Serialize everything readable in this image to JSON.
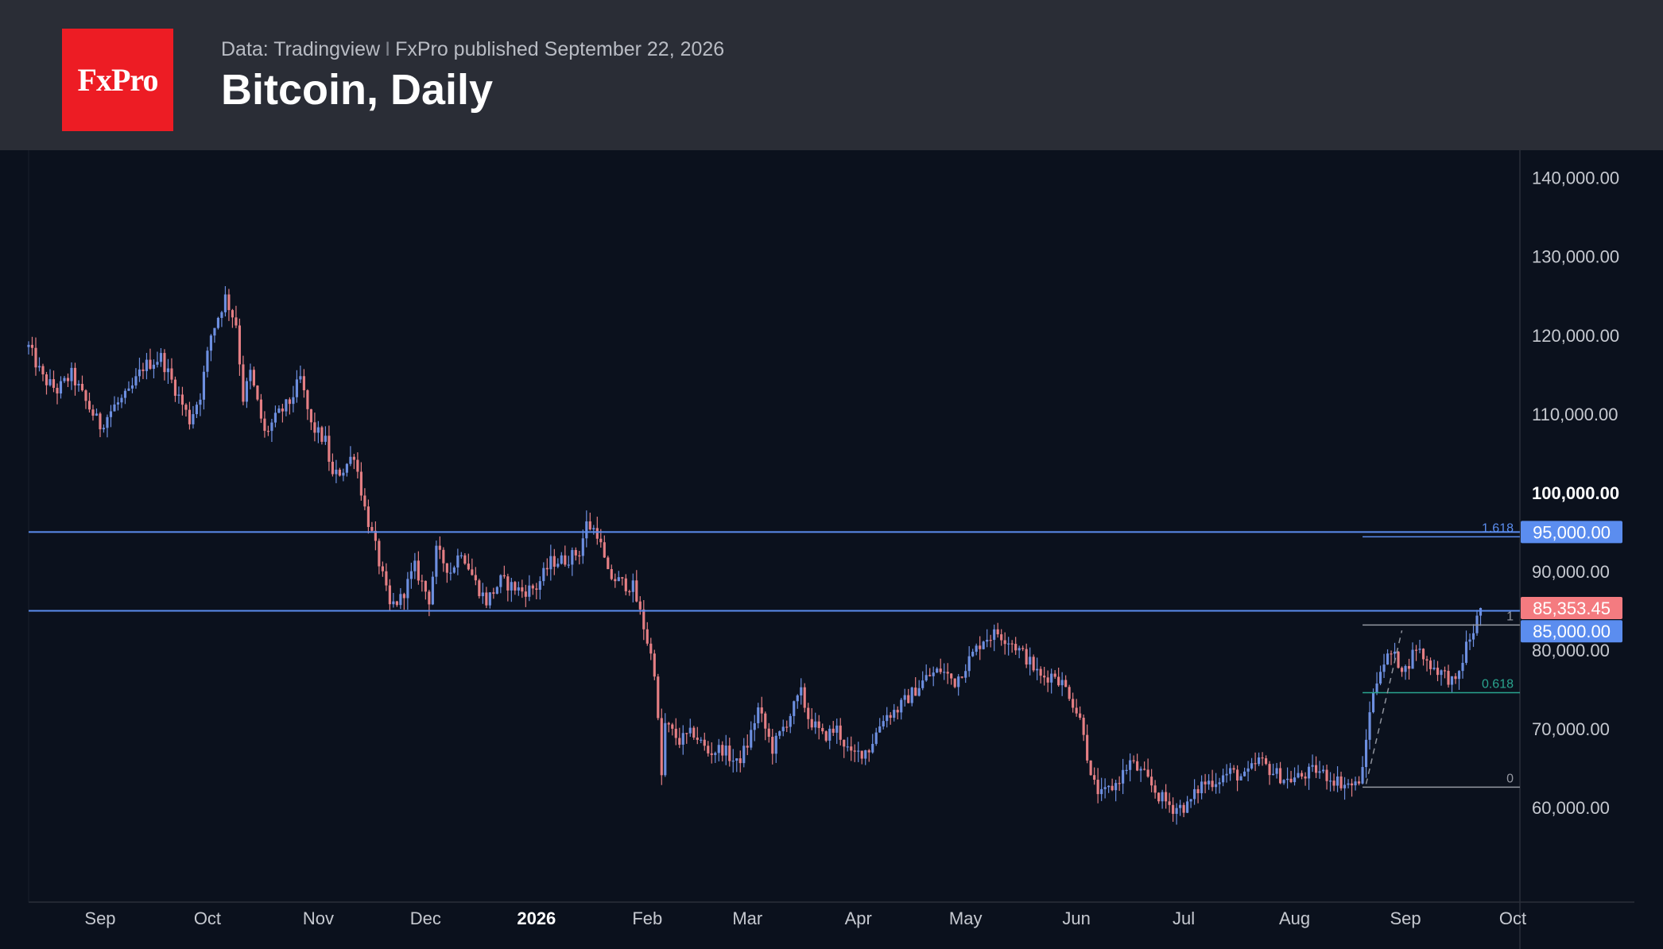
{
  "header": {
    "logo_text": "FxPro",
    "source": "Data: Tradingview",
    "separator": "I",
    "published": "FxPro published September 22, 2026",
    "title": "Bitcoin, Daily"
  },
  "colors": {
    "header_bg": "#2a2d36",
    "chart_bg": "#0b111d",
    "logo_bg": "#ed1c24",
    "up_candle": "#6d8fe0",
    "down_candle": "#e57f84",
    "level_line": "#5b8def",
    "fib_line": "#9598a1",
    "fib_618": "#2aa58f",
    "price_tag": "#f47b80"
  },
  "chart_data": {
    "type": "candlestick",
    "title": "Bitcoin, Daily",
    "y_axis": {
      "ticks": [
        "140,000.00",
        "130,000.00",
        "120,000.00",
        "110,000.00",
        "100,000.00",
        "90,000.00",
        "80,000.00",
        "70,000.00",
        "60,000.00"
      ],
      "tick_values": [
        140000,
        130000,
        120000,
        110000,
        100000,
        90000,
        80000,
        70000,
        60000
      ],
      "bold_tick": "100,000.00",
      "range": [
        48000,
        143500
      ],
      "position": "right"
    },
    "x_axis": {
      "labels": [
        {
          "text": "Sep",
          "date": "2025-09-01"
        },
        {
          "text": "Oct",
          "date": "2025-10-01"
        },
        {
          "text": "Nov",
          "date": "2025-11-01"
        },
        {
          "text": "Dec",
          "date": "2025-12-01"
        },
        {
          "text": "2026",
          "date": "2026-01-01",
          "bold": true
        },
        {
          "text": "Feb",
          "date": "2026-02-01"
        },
        {
          "text": "Mar",
          "date": "2026-03-01"
        },
        {
          "text": "Apr",
          "date": "2026-04-01"
        },
        {
          "text": "May",
          "date": "2026-05-01"
        },
        {
          "text": "Jun",
          "date": "2026-06-01"
        },
        {
          "text": "Jul",
          "date": "2026-07-01"
        },
        {
          "text": "Aug",
          "date": "2026-08-01"
        },
        {
          "text": "Sep",
          "date": "2026-09-01"
        },
        {
          "text": "Oct",
          "date": "2026-10-01"
        }
      ],
      "range": [
        "2025-08-12",
        "2026-10-03"
      ]
    },
    "last_price": {
      "value": 85353.45,
      "label": "85,353.45"
    },
    "horizontal_levels": [
      {
        "value": 95000,
        "label": "95,000.00"
      },
      {
        "value": 85000,
        "label": "85,000.00"
      }
    ],
    "fibonacci": {
      "start_date": "2026-08-20",
      "levels": [
        {
          "ratio": "1.618",
          "value": 94400
        },
        {
          "ratio": "1",
          "value": 83200
        },
        {
          "ratio": "0.618",
          "value": 74600
        },
        {
          "ratio": "0",
          "value": 62600
        }
      ]
    },
    "trend_line": {
      "from": {
        "date": "2026-08-21",
        "value": 63000
      },
      "to": {
        "date": "2026-08-31",
        "value": 82500
      }
    },
    "close_path": [
      [
        "2025-08-12",
        118500
      ],
      [
        "2025-08-16",
        114500
      ],
      [
        "2025-08-20",
        113000
      ],
      [
        "2025-08-24",
        115000
      ],
      [
        "2025-08-28",
        111500
      ],
      [
        "2025-09-01",
        108500
      ],
      [
        "2025-09-05",
        111000
      ],
      [
        "2025-09-09",
        112500
      ],
      [
        "2025-09-13",
        116000
      ],
      [
        "2025-09-18",
        117200
      ],
      [
        "2025-09-22",
        113200
      ],
      [
        "2025-09-26",
        109200
      ],
      [
        "2025-09-29",
        112500
      ],
      [
        "2025-10-02",
        120000
      ],
      [
        "2025-10-06",
        124800
      ],
      [
        "2025-10-09",
        121500
      ],
      [
        "2025-10-11",
        112000
      ],
      [
        "2025-10-13",
        115200
      ],
      [
        "2025-10-17",
        107500
      ],
      [
        "2025-10-21",
        110000
      ],
      [
        "2025-10-24",
        111500
      ],
      [
        "2025-10-27",
        114500
      ],
      [
        "2025-10-30",
        108500
      ],
      [
        "2025-11-03",
        106500
      ],
      [
        "2025-11-05",
        102000
      ],
      [
        "2025-11-08",
        103000
      ],
      [
        "2025-11-11",
        105000
      ],
      [
        "2025-11-14",
        98000
      ],
      [
        "2025-11-17",
        93000
      ],
      [
        "2025-11-21",
        85500
      ],
      [
        "2025-11-24",
        86500
      ],
      [
        "2025-11-28",
        90500
      ],
      [
        "2025-12-02",
        86500
      ],
      [
        "2025-12-04",
        92500
      ],
      [
        "2025-12-08",
        90000
      ],
      [
        "2025-12-11",
        92800
      ],
      [
        "2025-12-15",
        88500
      ],
      [
        "2025-12-18",
        86200
      ],
      [
        "2025-12-22",
        88800
      ],
      [
        "2025-12-28",
        87500
      ],
      [
        "2026-01-01",
        88000
      ],
      [
        "2026-01-05",
        91200
      ],
      [
        "2026-01-09",
        91500
      ],
      [
        "2026-01-13",
        92500
      ],
      [
        "2026-01-15",
        96000
      ],
      [
        "2026-01-18",
        95000
      ],
      [
        "2026-01-21",
        89500
      ],
      [
        "2026-01-25",
        88500
      ],
      [
        "2026-01-28",
        88000
      ],
      [
        "2026-01-31",
        83000
      ],
      [
        "2026-02-03",
        77500
      ],
      [
        "2026-02-05",
        64000
      ],
      [
        "2026-02-06",
        70500
      ],
      [
        "2026-02-10",
        68500
      ],
      [
        "2026-02-14",
        69500
      ],
      [
        "2026-02-18",
        67000
      ],
      [
        "2026-02-22",
        67500
      ],
      [
        "2026-02-26",
        65500
      ],
      [
        "2026-03-01",
        68000
      ],
      [
        "2026-03-04",
        72500
      ],
      [
        "2026-03-08",
        67500
      ],
      [
        "2026-03-12",
        71000
      ],
      [
        "2026-03-16",
        74500
      ],
      [
        "2026-03-18",
        71500
      ],
      [
        "2026-03-22",
        69000
      ],
      [
        "2026-03-26",
        70000
      ],
      [
        "2026-03-30",
        66500
      ],
      [
        "2026-04-04",
        67500
      ],
      [
        "2026-04-08",
        71500
      ],
      [
        "2026-04-12",
        72500
      ],
      [
        "2026-04-16",
        74500
      ],
      [
        "2026-04-20",
        76500
      ],
      [
        "2026-04-24",
        77500
      ],
      [
        "2026-04-28",
        76000
      ],
      [
        "2026-05-02",
        78800
      ],
      [
        "2026-05-06",
        81500
      ],
      [
        "2026-05-10",
        82200
      ],
      [
        "2026-05-14",
        81000
      ],
      [
        "2026-05-18",
        79000
      ],
      [
        "2026-05-22",
        76500
      ],
      [
        "2026-05-26",
        77000
      ],
      [
        "2026-05-30",
        74500
      ],
      [
        "2026-06-03",
        70000
      ],
      [
        "2026-06-05",
        63500
      ],
      [
        "2026-06-08",
        61500
      ],
      [
        "2026-06-12",
        63000
      ],
      [
        "2026-06-16",
        65800
      ],
      [
        "2026-06-20",
        64000
      ],
      [
        "2026-06-24",
        61500
      ],
      [
        "2026-06-28",
        60000
      ],
      [
        "2026-07-02",
        60200
      ],
      [
        "2026-07-06",
        63000
      ],
      [
        "2026-07-10",
        63500
      ],
      [
        "2026-07-14",
        64500
      ],
      [
        "2026-07-18",
        63800
      ],
      [
        "2026-07-22",
        66000
      ],
      [
        "2026-07-26",
        64500
      ],
      [
        "2026-07-30",
        63500
      ],
      [
        "2026-08-03",
        64000
      ],
      [
        "2026-08-07",
        64800
      ],
      [
        "2026-08-11",
        63800
      ],
      [
        "2026-08-15",
        63000
      ],
      [
        "2026-08-18",
        62800
      ],
      [
        "2026-08-20",
        64500
      ],
      [
        "2026-08-22",
        72500
      ],
      [
        "2026-08-25",
        78000
      ],
      [
        "2026-08-28",
        79500
      ],
      [
        "2026-09-01",
        77500
      ],
      [
        "2026-09-04",
        80500
      ],
      [
        "2026-09-07",
        78500
      ],
      [
        "2026-09-10",
        77500
      ],
      [
        "2026-09-13",
        76500
      ],
      [
        "2026-09-15",
        75500
      ],
      [
        "2026-09-18",
        80500
      ],
      [
        "2026-09-20",
        82500
      ],
      [
        "2026-09-22",
        85353
      ]
    ]
  }
}
